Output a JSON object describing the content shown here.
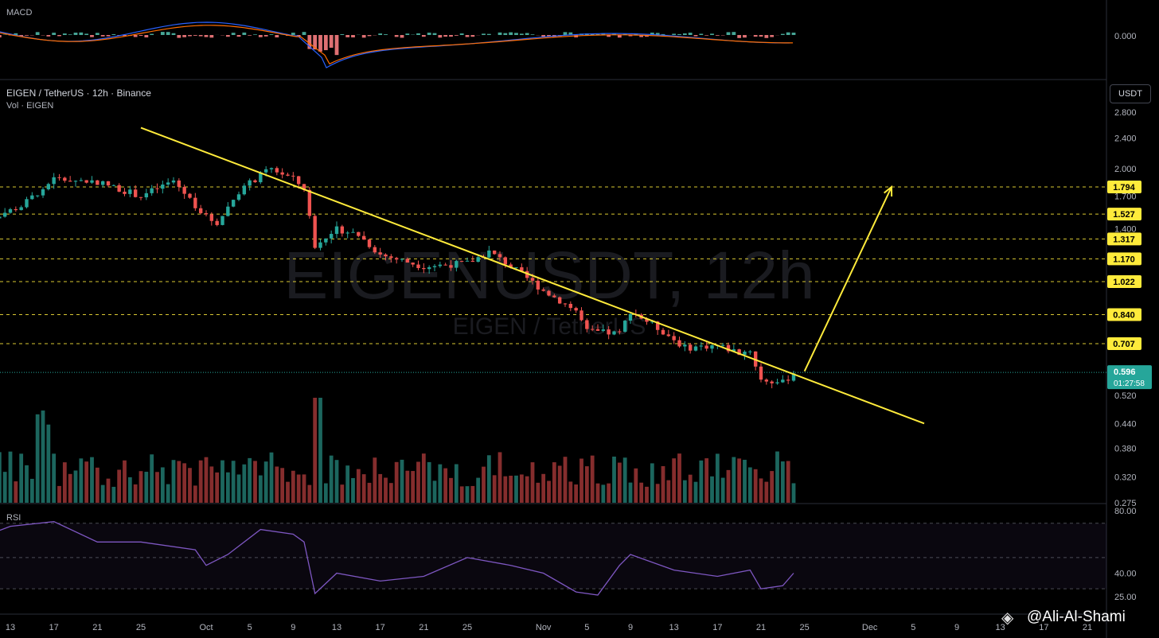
{
  "header": {
    "symbol_line": "EIGEN / TetherUS · 12h · Binance",
    "volume_line": "Vol · EIGEN",
    "watermark_main": "EIGENUSDT, 12h",
    "watermark_sub": "EIGEN / TetherUS"
  },
  "macd": {
    "label": "MACD",
    "zero_label": "0.000"
  },
  "rsi": {
    "label": "RSI",
    "levels": [
      "80.00",
      "40.00",
      "25.00"
    ]
  },
  "currency_button": "USDT",
  "price_tag": {
    "price": "0.596",
    "countdown": "01:27:58"
  },
  "signature": {
    "icon": "binance-diamond-icon",
    "text": "@Ali-Al-Shami"
  },
  "colors": {
    "up": "#26a69a",
    "down": "#ef5350",
    "trendline": "#ffeb3b",
    "rsi_line": "#7e57c2",
    "macd": "#2962ff",
    "signal": "#ff6d00"
  },
  "chart_data": {
    "type": "candlestick",
    "title": "EIGEN / TetherUS · 12h · Binance",
    "y_scale": "log",
    "ylim": [
      0.275,
      3.0
    ],
    "y_ticks": [
      "2.800",
      "2.400",
      "2.000",
      "1.700",
      "1.400",
      "0.520",
      "0.440",
      "0.380",
      "0.320",
      "0.275"
    ],
    "x_ticks": [
      "13",
      "17",
      "21",
      "25",
      "Oct",
      "5",
      "9",
      "13",
      "17",
      "21",
      "25",
      "Nov",
      "5",
      "9",
      "13",
      "17",
      "21",
      "25",
      "Dec",
      "5",
      "9",
      "13",
      "17",
      "21"
    ],
    "resistance_levels": [
      "1.794",
      "1.527",
      "1.317",
      "1.170",
      "1.022",
      "0.840",
      "0.707"
    ],
    "current_price": 0.596,
    "annotations": [
      {
        "kind": "descending-trendline",
        "from": [
          "Sep 25",
          2.55
        ],
        "to": [
          "Dec 6",
          0.44
        ]
      },
      {
        "kind": "arrow-up",
        "from": [
          "Nov 25",
          0.6
        ],
        "to": [
          "Dec 3",
          1.794
        ]
      }
    ],
    "close_path": [
      [
        "Sep 10",
        1.45
      ],
      [
        "Sep 14",
        1.6
      ],
      [
        "Sep 17",
        1.88
      ],
      [
        "Sep 21",
        1.85
      ],
      [
        "Sep 25",
        1.7
      ],
      [
        "Sep 28",
        1.86
      ],
      [
        "Oct 1",
        1.5
      ],
      [
        "Oct 2",
        1.45
      ],
      [
        "Oct 4",
        1.75
      ],
      [
        "Oct 6",
        1.92
      ],
      [
        "Oct 7",
        2.0
      ],
      [
        "Oct 9",
        1.88
      ],
      [
        "Oct 10",
        1.78
      ],
      [
        "Oct 11",
        1.25
      ],
      [
        "Oct 13",
        1.4
      ],
      [
        "Oct 15",
        1.35
      ],
      [
        "Oct 17",
        1.2
      ],
      [
        "Oct 21",
        1.12
      ],
      [
        "Oct 25",
        1.14
      ],
      [
        "Oct 27",
        1.22
      ],
      [
        "Oct 29",
        1.12
      ],
      [
        "Nov 1",
        0.97
      ],
      [
        "Nov 4",
        0.86
      ],
      [
        "Nov 5",
        0.76
      ],
      [
        "Nov 8",
        0.75
      ],
      [
        "Nov 9",
        0.86
      ],
      [
        "Nov 12",
        0.76
      ],
      [
        "Nov 14",
        0.69
      ],
      [
        "Nov 17",
        0.7
      ],
      [
        "Nov 19",
        0.67
      ],
      [
        "Nov 20",
        0.68
      ],
      [
        "Nov 21",
        0.57
      ],
      [
        "Nov 23",
        0.56
      ],
      [
        "Nov 24",
        0.596
      ]
    ],
    "rsi_path": [
      [
        "Sep 10",
        62
      ],
      [
        "Sep 13",
        70
      ],
      [
        "Sep 17",
        73
      ],
      [
        "Sep 21",
        60
      ],
      [
        "Sep 25",
        60
      ],
      [
        "Sep 30",
        55
      ],
      [
        "Oct 1",
        45
      ],
      [
        "Oct 3",
        52
      ],
      [
        "Oct 6",
        68
      ],
      [
        "Oct 9",
        65
      ],
      [
        "Oct 10",
        60
      ],
      [
        "Oct 11",
        27
      ],
      [
        "Oct 13",
        40
      ],
      [
        "Oct 17",
        35
      ],
      [
        "Oct 21",
        38
      ],
      [
        "Oct 25",
        50
      ],
      [
        "Oct 29",
        45
      ],
      [
        "Nov 1",
        40
      ],
      [
        "Nov 4",
        28
      ],
      [
        "Nov 6",
        26
      ],
      [
        "Nov 8",
        45
      ],
      [
        "Nov 9",
        52
      ],
      [
        "Nov 13",
        42
      ],
      [
        "Nov 17",
        38
      ],
      [
        "Nov 20",
        42
      ],
      [
        "Nov 21",
        30
      ],
      [
        "Nov 23",
        32
      ],
      [
        "Nov 24",
        40
      ]
    ]
  }
}
